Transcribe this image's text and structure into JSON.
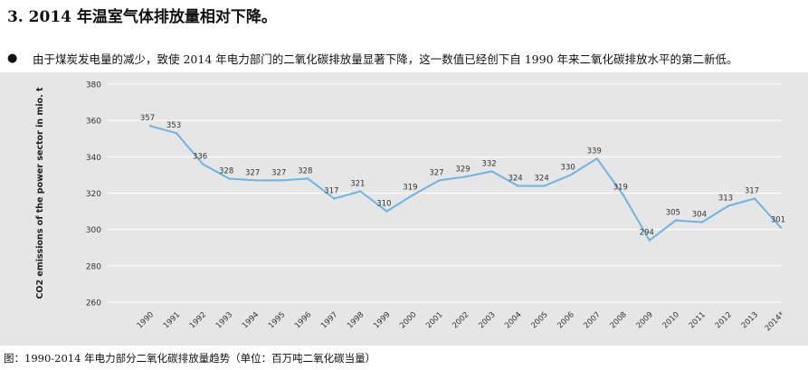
{
  "heading": "3. 2014 年温室气体排放量相对下降。",
  "bullet": {
    "symbol": "●",
    "text": "由于煤炭发电量的减少，致使 2014 年电力部门的二氧化碳排放量显著下降，这一数值已经创下自 1990 年来二氧化碳排放水平的第二新低。"
  },
  "caption": "图：1990-2014 年电力部分二氧化碳排放量趋势（单位：百万吨二氧化碳当量）",
  "colors": {
    "line": "#6cb4e4",
    "panel": "#e6e6e6",
    "grid": "#ffffff"
  },
  "chart_data": {
    "type": "line",
    "ylabel": "CO2 emissions of the power sector in mio. t",
    "ylim": [
      260,
      380
    ],
    "yticks": [
      260,
      280,
      300,
      320,
      340,
      360,
      380
    ],
    "grid": true,
    "categories": [
      "1990",
      "1991",
      "1992",
      "1993",
      "1994",
      "1995",
      "1996",
      "1997",
      "1998",
      "1999",
      "2000",
      "2001",
      "2002",
      "2003",
      "2004",
      "2005",
      "2006",
      "2007",
      "2008",
      "2009",
      "2010",
      "2011",
      "2012",
      "2013",
      "2014*"
    ],
    "values": [
      357,
      353,
      336,
      328,
      327,
      327,
      328,
      317,
      321,
      310,
      319,
      327,
      329,
      332,
      324,
      324,
      330,
      339,
      319,
      294,
      305,
      304,
      313,
      317,
      301
    ]
  }
}
